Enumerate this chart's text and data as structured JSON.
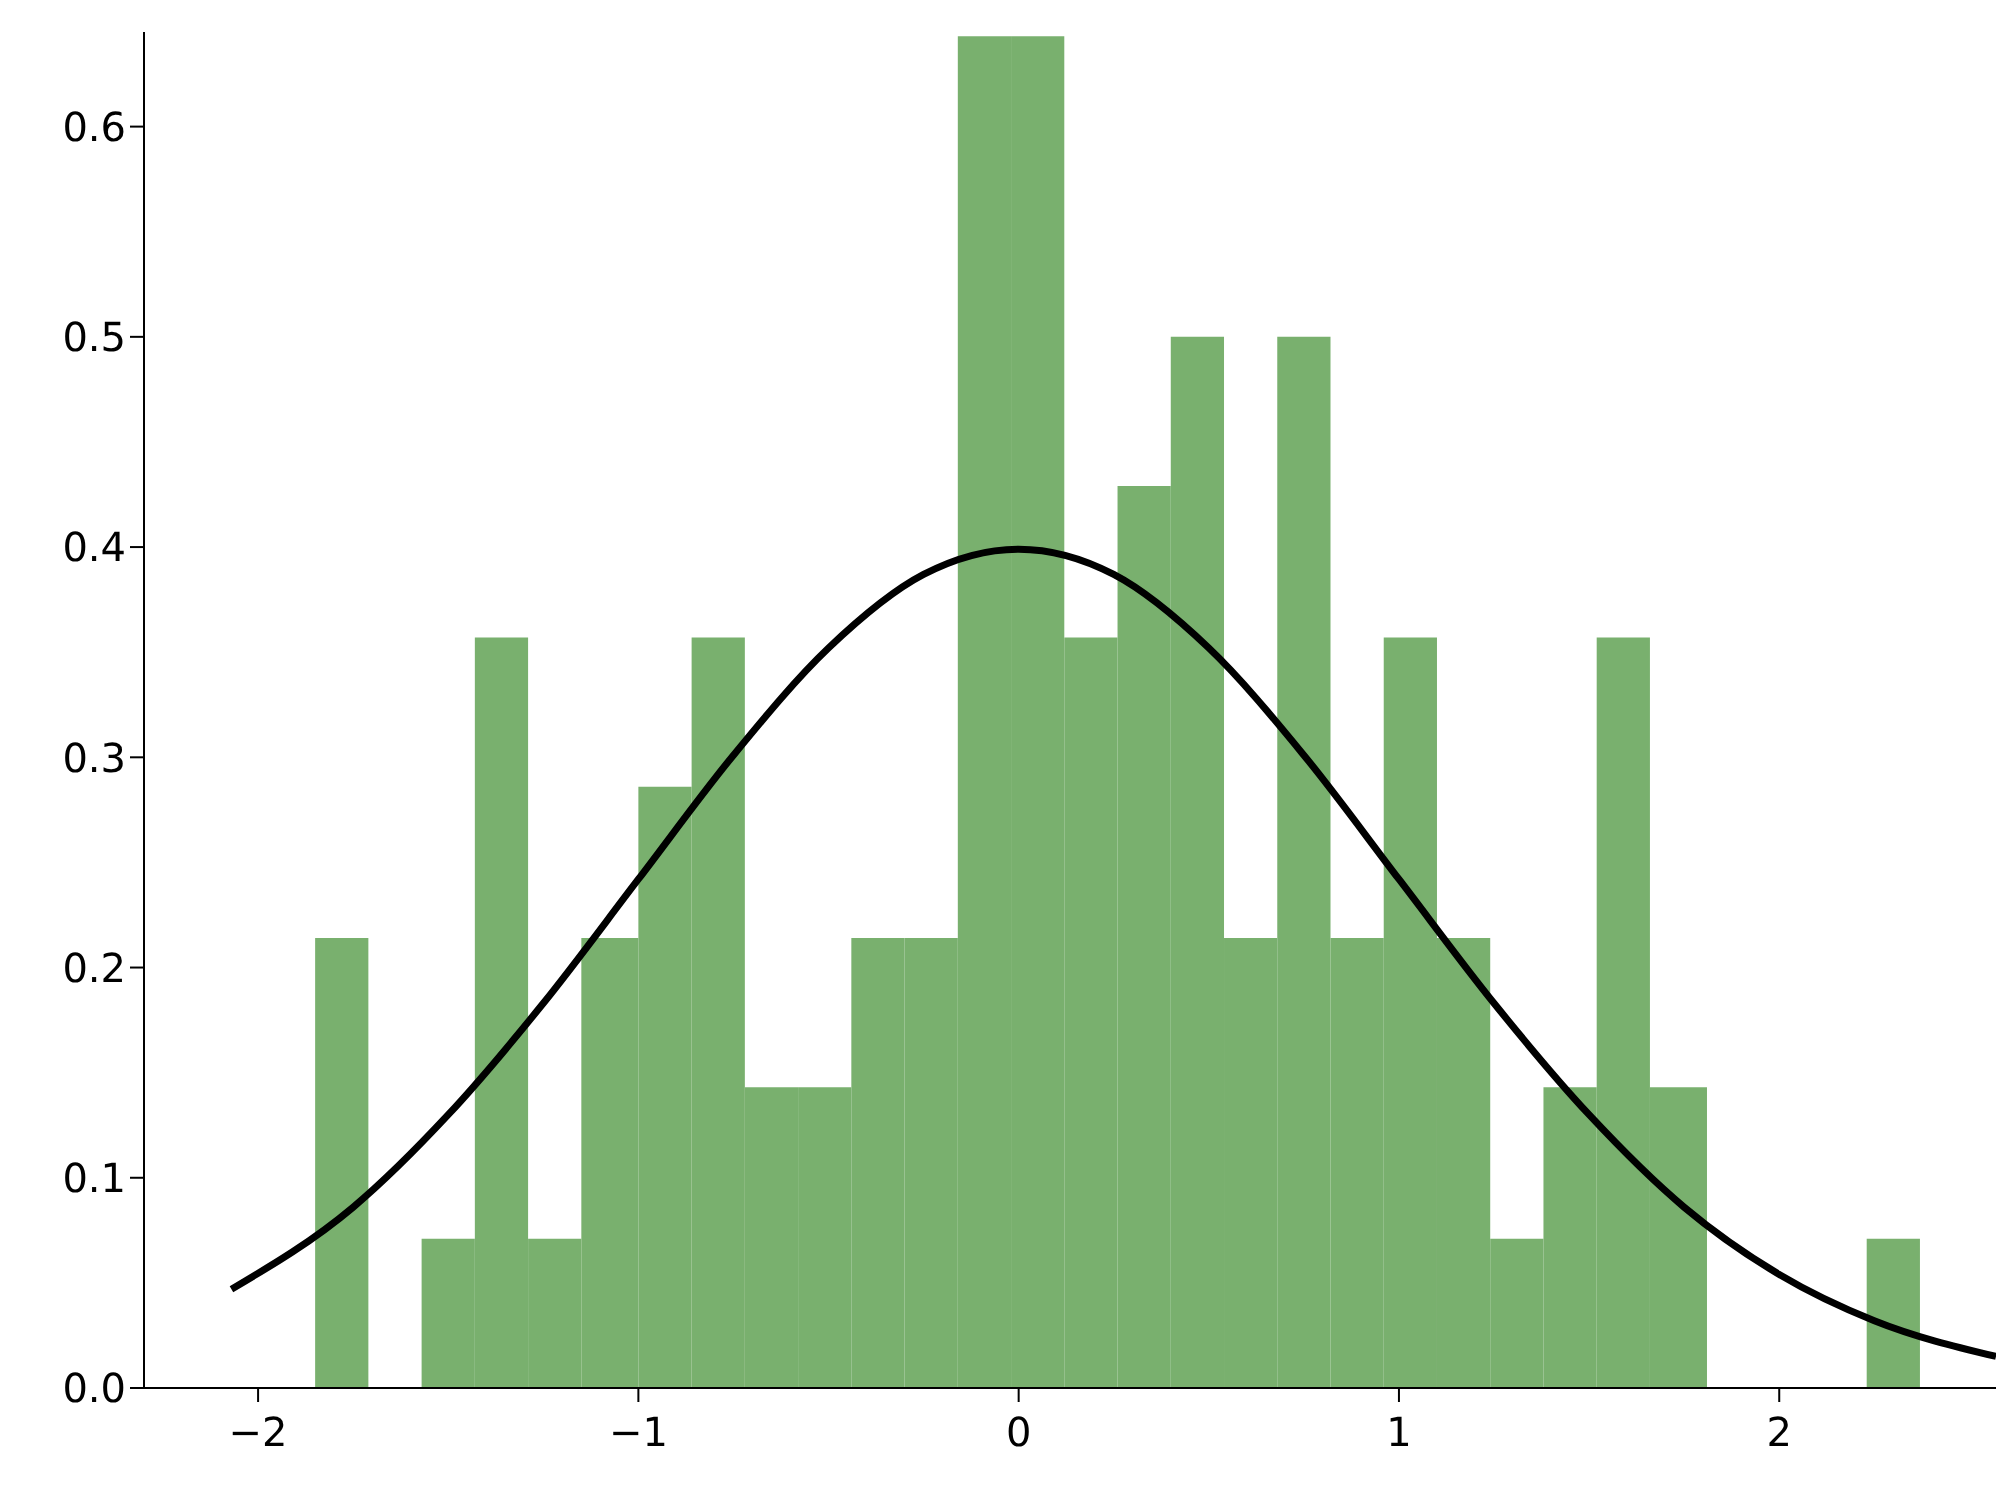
{
  "chart_data": {
    "type": "histogram",
    "xlim": [
      -2.3,
      2.57
    ],
    "ylim": [
      0,
      0.645
    ],
    "xticks": [
      {
        "value": -2,
        "label": "−2"
      },
      {
        "value": -1,
        "label": "−1"
      },
      0,
      1,
      2
    ],
    "yticks": [
      {
        "value": 0,
        "label": "0.0"
      },
      0.1,
      0.2,
      0.3,
      0.4,
      0.5,
      0.6
    ],
    "series": [
      {
        "color": "#79b06e",
        "bins": [
          -1.85,
          -1.71,
          -1.57,
          -1.43,
          -1.29,
          -1.15,
          -1.0,
          -0.86,
          -0.72,
          -0.58,
          -0.44,
          -0.3,
          -0.16,
          -0.02,
          0.12,
          0.26,
          0.4,
          0.54,
          0.68,
          0.82,
          0.96,
          1.1,
          1.24,
          1.38,
          1.52,
          1.66,
          1.81,
          2.23,
          2.37
        ],
        "values": [
          0.214,
          0,
          0.071,
          0.357,
          0.071,
          0.214,
          0.286,
          0.357,
          0.143,
          0.143,
          0.214,
          0.214,
          0.643,
          0.643,
          0.357,
          0.429,
          0.5,
          0.214,
          0.5,
          0.214,
          0.357,
          0.214,
          0.071,
          0.143,
          0.357,
          0.143,
          0,
          0.071
        ]
      },
      {
        "type": "line",
        "color": "#000000",
        "x": [
          -2.07,
          -1.75,
          -1.5,
          -1.25,
          -1.0,
          -0.75,
          -0.5,
          -0.25,
          0,
          0.25,
          0.5,
          0.75,
          1.0,
          1.25,
          1.5,
          1.75,
          2.0,
          2.25,
          2.57
        ],
        "values": [
          0.047,
          0.086,
          0.13,
          0.183,
          0.242,
          0.301,
          0.352,
          0.387,
          0.399,
          0.387,
          0.352,
          0.301,
          0.242,
          0.183,
          0.13,
          0.086,
          0.054,
          0.032,
          0.015
        ]
      }
    ]
  }
}
